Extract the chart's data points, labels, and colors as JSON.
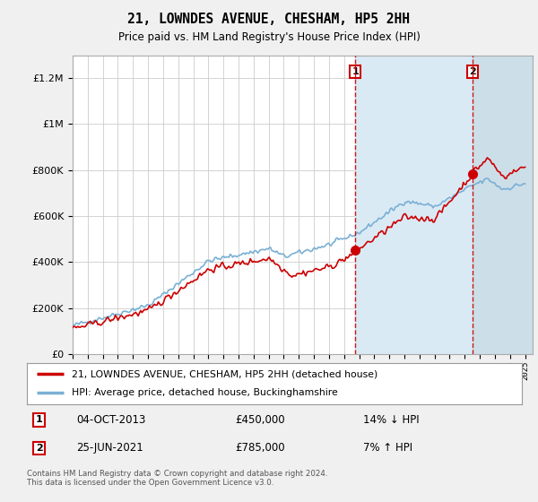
{
  "title": "21, LOWNDES AVENUE, CHESHAM, HP5 2HH",
  "subtitle": "Price paid vs. HM Land Registry's House Price Index (HPI)",
  "ylim": [
    0,
    1300000
  ],
  "yticks": [
    0,
    200000,
    400000,
    600000,
    800000,
    1000000,
    1200000
  ],
  "ytick_labels": [
    "£0",
    "£200K",
    "£400K",
    "£600K",
    "£800K",
    "£1M",
    "£1.2M"
  ],
  "xlim_start": 1995.0,
  "xlim_end": 2025.5,
  "sale1_year": 2013.75,
  "sale1_price": 450000,
  "sale2_year": 2021.5,
  "sale2_price": 785000,
  "sale1_date": "04-OCT-2013",
  "sale1_amount": "£450,000",
  "sale1_hpi": "14% ↓ HPI",
  "sale2_date": "25-JUN-2021",
  "sale2_amount": "£785,000",
  "sale2_hpi": "7% ↑ HPI",
  "hpi_line_color": "#7ab0d4",
  "property_color": "#cc0000",
  "shade_color": "#daeaf5",
  "hatch_color": "#ccdee8",
  "legend_label1": "21, LOWNDES AVENUE, CHESHAM, HP5 2HH (detached house)",
  "legend_label2": "HPI: Average price, detached house, Buckinghamshire",
  "footer": "Contains HM Land Registry data © Crown copyright and database right 2024.\nThis data is licensed under the Open Government Licence v3.0.",
  "background_color": "#f0f0f0",
  "plot_bg_color": "#ffffff",
  "grid_color": "#cccccc"
}
